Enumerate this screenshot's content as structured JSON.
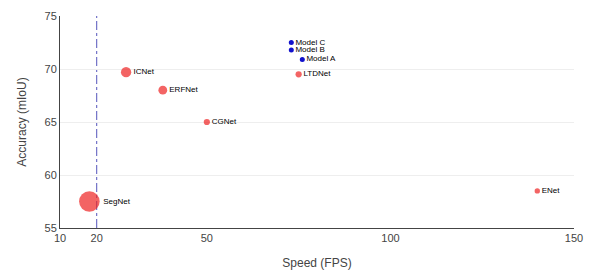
{
  "chart_data": {
    "type": "scatter",
    "xlabel": "Speed (FPS)",
    "ylabel": "Accuracy (mIoU)",
    "xlim": [
      10,
      150
    ],
    "ylim": [
      55,
      75
    ],
    "xticks": [
      10,
      20,
      50,
      100,
      150
    ],
    "yticks": [
      55,
      60,
      65,
      70,
      75
    ],
    "grid": "y",
    "reference_lines": [
      {
        "axis": "x",
        "value": 20,
        "color": "#5555bb",
        "line_style": "dashdot"
      }
    ],
    "series": [
      {
        "color": "#ee2222",
        "marker": "circle",
        "labels": [
          "SegNet",
          "ICNet",
          "ERFNet",
          "CGNet",
          "LTDNet",
          "ENet"
        ],
        "x": [
          18,
          28,
          38,
          50,
          75,
          140
        ],
        "values": [
          57.5,
          69.7,
          68.0,
          65.0,
          69.5,
          58.5
        ],
        "sizes": [
          220,
          55,
          40,
          20,
          20,
          15
        ]
      },
      {
        "color": "#1111cc",
        "marker": "circle",
        "labels": [
          "Model C",
          "Model B",
          "Model A"
        ],
        "x": [
          73,
          73,
          76
        ],
        "values": [
          72.5,
          71.8,
          70.9
        ]
      }
    ]
  }
}
